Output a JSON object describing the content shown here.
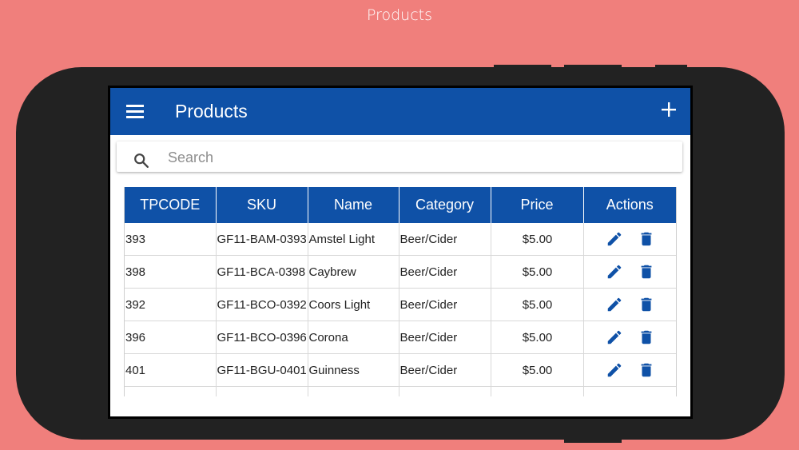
{
  "caption": "Products",
  "appbar": {
    "title": "Products"
  },
  "search": {
    "placeholder": "Search",
    "value": ""
  },
  "table": {
    "columns": [
      "TPCODE",
      "SKU",
      "Name",
      "Category",
      "Price",
      "Actions"
    ],
    "rows": [
      {
        "tpcode": "393",
        "sku": "GF11-BAM-0393",
        "name": "Amstel Light",
        "category": "Beer/Cider",
        "price": "$5.00"
      },
      {
        "tpcode": "398",
        "sku": "GF11-BCA-0398",
        "name": "Caybrew",
        "category": "Beer/Cider",
        "price": "$5.00"
      },
      {
        "tpcode": "392",
        "sku": "GF11-BCO-0392",
        "name": "Coors Light",
        "category": "Beer/Cider",
        "price": "$5.00"
      },
      {
        "tpcode": "396",
        "sku": "GF11-BCO-0396",
        "name": "Corona",
        "category": "Beer/Cider",
        "price": "$5.00"
      },
      {
        "tpcode": "401",
        "sku": "GF11-BGU-0401",
        "name": "Guinness",
        "category": "Beer/Cider",
        "price": "$5.00"
      }
    ]
  },
  "colors": {
    "background": "#f07f7c",
    "primary": "#0f51a7",
    "device": "#222222"
  },
  "icons": {
    "menu": "hamburger-icon",
    "add": "plus-icon",
    "search": "magnifier-icon",
    "edit": "pencil-icon",
    "delete": "trash-icon"
  }
}
